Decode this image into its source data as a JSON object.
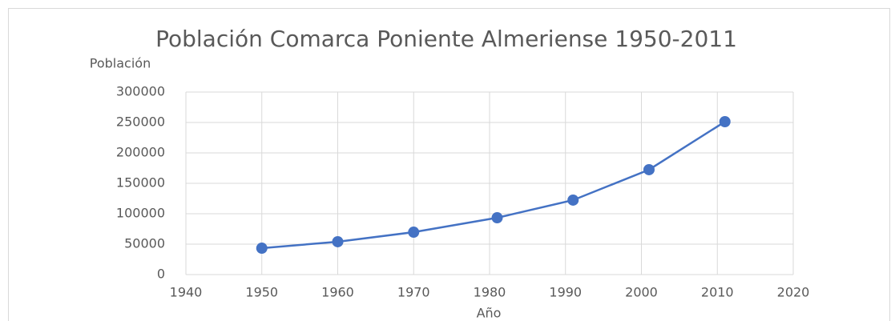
{
  "chart_data": {
    "type": "line",
    "title": "Población Comarca Poniente Almeriense 1950-2011",
    "x_label": "Año",
    "y_label": "Población",
    "x": [
      1950,
      1960,
      1970,
      1981,
      1991,
      2001,
      2011
    ],
    "series": [
      {
        "name": "Población",
        "color": "#4472c4",
        "values": [
          43400,
          54000,
          69700,
          93400,
          122400,
          172400,
          251300
        ]
      }
    ],
    "xlim": [
      1940,
      2020
    ],
    "xticks": [
      1940,
      1950,
      1960,
      1970,
      1980,
      1990,
      2000,
      2010,
      2020
    ],
    "ylim": [
      0,
      300000
    ],
    "yticks": [
      0,
      50000,
      100000,
      150000,
      200000,
      250000,
      300000
    ],
    "grid": true,
    "legend": false
  }
}
